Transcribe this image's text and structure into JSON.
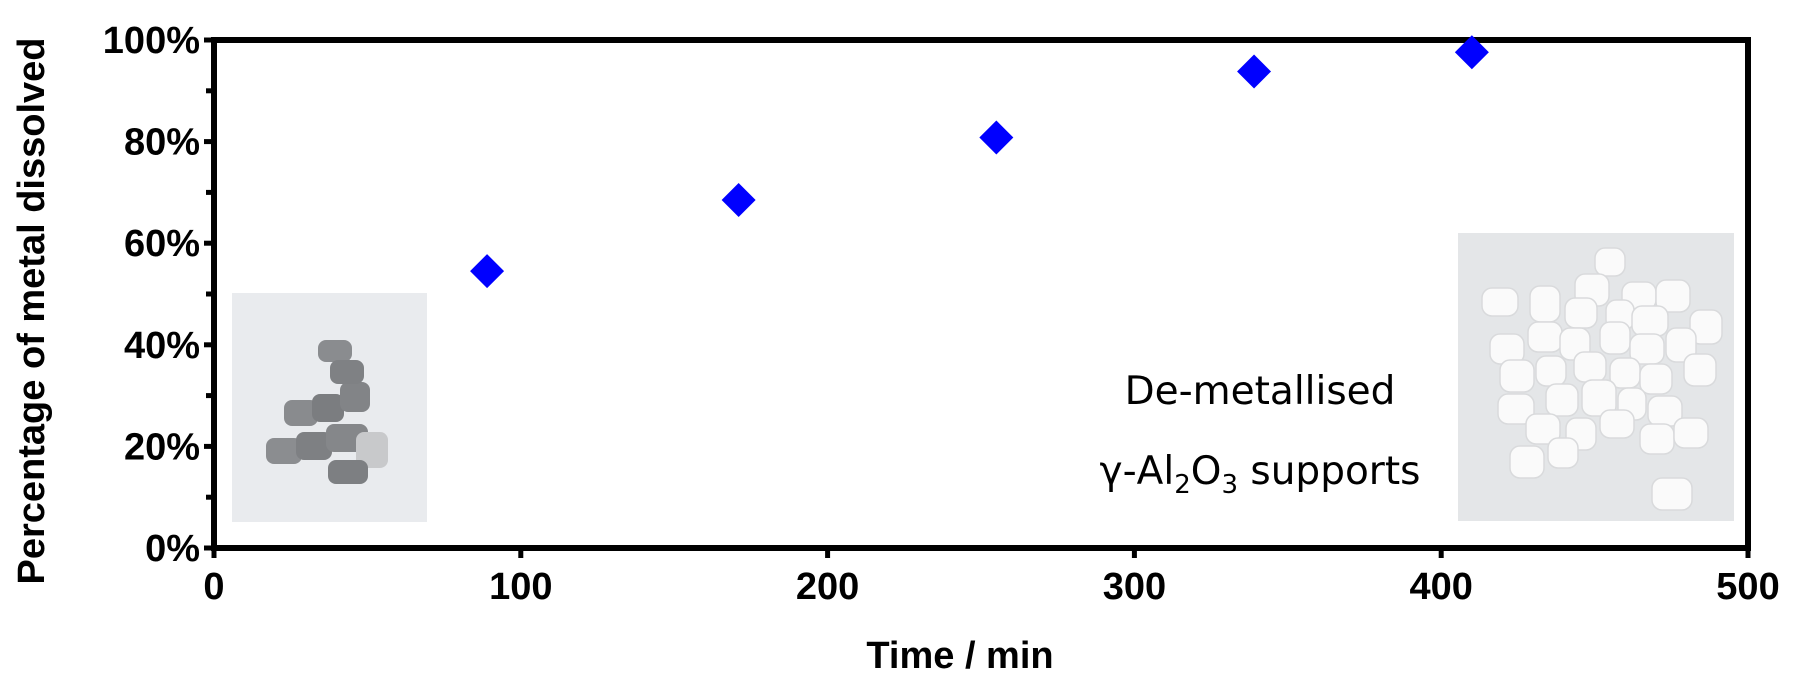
{
  "chart_data": {
    "type": "scatter",
    "title": "",
    "xlabel": "Time / min",
    "ylabel": "Percentage of metal dissolved",
    "xlim": [
      0,
      500
    ],
    "ylim": [
      0,
      100
    ],
    "x_ticks": [
      "0",
      "100",
      "200",
      "300",
      "400",
      "500"
    ],
    "y_ticks": [
      "0%",
      "20%",
      "40%",
      "60%",
      "80%",
      "100%"
    ],
    "x": [
      89,
      171,
      255,
      339,
      410
    ],
    "y": [
      54.5,
      68.5,
      80.8,
      93.8,
      97.6
    ],
    "marker": "diamond",
    "marker_color": "#0000ff",
    "grid": false,
    "annotation": {
      "line1": "De-metallised",
      "line2_prefix": "γ-Al",
      "sub1": "2",
      "line2_o": "O",
      "sub2": "3",
      "line2_suffix": " supports"
    },
    "photos": {
      "left": "photo-grey-metal-loaded-pellets",
      "right": "photo-white-de-metallised-pellets"
    }
  }
}
